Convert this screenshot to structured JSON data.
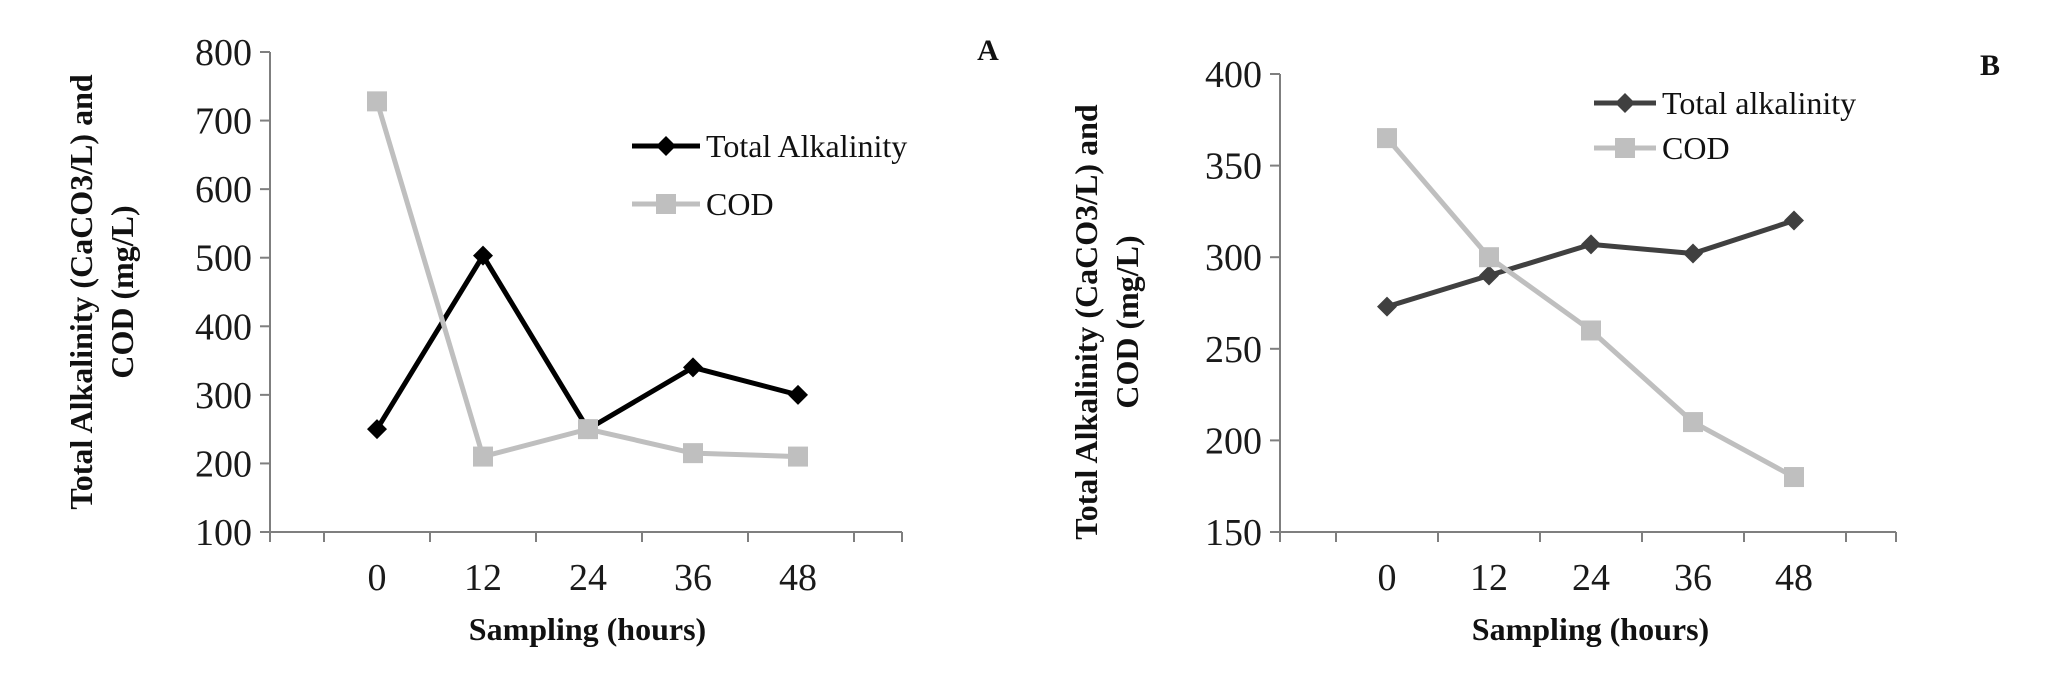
{
  "chart_data": [
    {
      "type": "line",
      "panel_label": "A",
      "xlabel": "Sampling (hours)",
      "ylabel_line1": "Total Alkalinity (CaCO3/L)  and",
      "ylabel_line2": "COD (mg/L)",
      "categories": [
        "0",
        "12",
        "24",
        "36",
        "48"
      ],
      "ylim": [
        100,
        800
      ],
      "yticks": [
        "100",
        "200",
        "300",
        "400",
        "500",
        "600",
        "700",
        "800"
      ],
      "grid": false,
      "legend_position": "top-right",
      "series": [
        {
          "name": "Total Alkalinity",
          "marker": "diamond",
          "color": "#000000",
          "values": [
            250,
            503,
            250,
            340,
            300
          ]
        },
        {
          "name": "COD",
          "marker": "square",
          "color": "#bfbfbf",
          "values": [
            728,
            210,
            250,
            215,
            210
          ]
        }
      ]
    },
    {
      "type": "line",
      "panel_label": "B",
      "xlabel": "Sampling (hours)",
      "ylabel_line1": "Total Alkalinity (CaCO3/L) and",
      "ylabel_line2": "COD (mg/L)",
      "categories": [
        "0",
        "12",
        "24",
        "36",
        "48"
      ],
      "ylim": [
        150,
        400
      ],
      "yticks": [
        "150",
        "200",
        "250",
        "300",
        "350",
        "400"
      ],
      "grid": false,
      "legend_position": "top-right",
      "series": [
        {
          "name": "Total alkalinity",
          "marker": "diamond",
          "color": "#404040",
          "values": [
            273,
            290,
            307,
            302,
            320
          ]
        },
        {
          "name": "COD",
          "marker": "square",
          "color": "#bfbfbf",
          "values": [
            365,
            300,
            260,
            210,
            180
          ]
        }
      ]
    }
  ]
}
